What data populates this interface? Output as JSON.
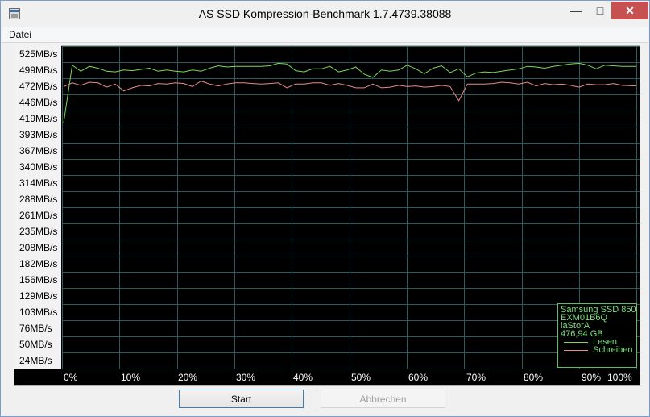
{
  "window": {
    "title": "AS SSD Kompression-Benchmark 1.7.4739.38088",
    "minimize_symbol": "—",
    "maximize_symbol": "□",
    "close_symbol": "✕"
  },
  "menu": {
    "items": [
      "Datei"
    ]
  },
  "chart_data": {
    "type": "line",
    "y_tick_labels": [
      "525MB/s",
      "499MB/s",
      "472MB/s",
      "446MB/s",
      "419MB/s",
      "393MB/s",
      "367MB/s",
      "340MB/s",
      "314MB/s",
      "288MB/s",
      "261MB/s",
      "235MB/s",
      "208MB/s",
      "182MB/s",
      "156MB/s",
      "129MB/s",
      "103MB/s",
      "76MB/s",
      "50MB/s",
      "24MB/s"
    ],
    "x_tick_labels": [
      "0%",
      "10%",
      "20%",
      "30%",
      "40%",
      "50%",
      "60%",
      "70%",
      "80%",
      "90%",
      "100%"
    ],
    "ylim": [
      0,
      525
    ],
    "xlim": [
      0,
      100
    ],
    "grid": true,
    "legend_position": "bottom-right",
    "series": [
      {
        "name": "Lesen",
        "color": "#7cd85a",
        "x": [
          0,
          1.5,
          3,
          4.5,
          6,
          7.5,
          9,
          10.5,
          12,
          13.5,
          15,
          16.5,
          18,
          19.5,
          21,
          22.5,
          24,
          25.5,
          27,
          28.5,
          30,
          31.5,
          33,
          34.5,
          36,
          37.5,
          39,
          40.5,
          42,
          43.5,
          45,
          46.5,
          48,
          49.5,
          51,
          52.5,
          54,
          55.5,
          57,
          58.5,
          60,
          61.5,
          63,
          64.5,
          66,
          67.5,
          69,
          70.5,
          72,
          73.5,
          75,
          76.5,
          78,
          79.5,
          81,
          82.5,
          84,
          85.5,
          87,
          88.5,
          90,
          91.5,
          93,
          94.5,
          96,
          97.5,
          100
        ],
        "values": [
          413,
          507,
          497,
          505,
          502,
          497,
          496,
          499,
          498,
          500,
          502,
          497,
          499,
          497,
          496,
          499,
          497,
          502,
          506,
          504,
          505,
          505,
          505,
          505,
          506,
          510,
          509,
          498,
          496,
          501,
          501,
          505,
          496,
          499,
          504,
          492,
          487,
          499,
          497,
          499,
          507,
          501,
          493,
          502,
          506,
          495,
          501,
          488,
          494,
          496,
          495,
          497,
          499,
          501,
          505,
          504,
          502,
          505,
          507,
          509,
          510,
          507,
          501,
          507,
          506,
          505,
          505
        ]
      },
      {
        "name": "Schreiben",
        "color": "#e88a8a",
        "x": [
          0,
          1.5,
          3,
          4.5,
          6,
          7.5,
          9,
          10.5,
          12,
          13.5,
          15,
          16.5,
          18,
          19.5,
          21,
          22.5,
          24,
          25.5,
          27,
          28.5,
          30,
          31.5,
          33,
          34.5,
          36,
          37.5,
          39,
          40.5,
          42,
          43.5,
          45,
          46.5,
          48,
          49.5,
          51,
          52.5,
          54,
          55.5,
          57,
          58.5,
          60,
          61.5,
          63,
          64.5,
          66,
          67.5,
          69,
          70.5,
          72,
          73.5,
          75,
          76.5,
          78,
          79.5,
          81,
          82.5,
          84,
          85.5,
          87,
          88.5,
          90,
          91.5,
          93,
          94.5,
          96,
          97.5,
          100
        ],
        "values": [
          472,
          478,
          474,
          479,
          478,
          471,
          476,
          465,
          470,
          474,
          473,
          477,
          476,
          478,
          477,
          472,
          481,
          476,
          473,
          476,
          478,
          478,
          477,
          476,
          477,
          478,
          470,
          476,
          476,
          478,
          478,
          474,
          477,
          474,
          470,
          470,
          476,
          470,
          471,
          474,
          472,
          473,
          471,
          472,
          474,
          472,
          449,
          476,
          476,
          476,
          477,
          479,
          478,
          476,
          479,
          473,
          477,
          475,
          476,
          474,
          471,
          476,
          475,
          475,
          477,
          474,
          473
        ]
      }
    ]
  },
  "legend": {
    "device": "Samsung SSD 850",
    "firmware": "EXM01B6Q",
    "driver": "iaStorA",
    "capacity": "476,94 GB",
    "read_label": "Lesen",
    "write_label": "Schreiben",
    "border_color": "#5fbf5f"
  },
  "buttons": {
    "start": "Start",
    "abort": "Abbrechen"
  }
}
